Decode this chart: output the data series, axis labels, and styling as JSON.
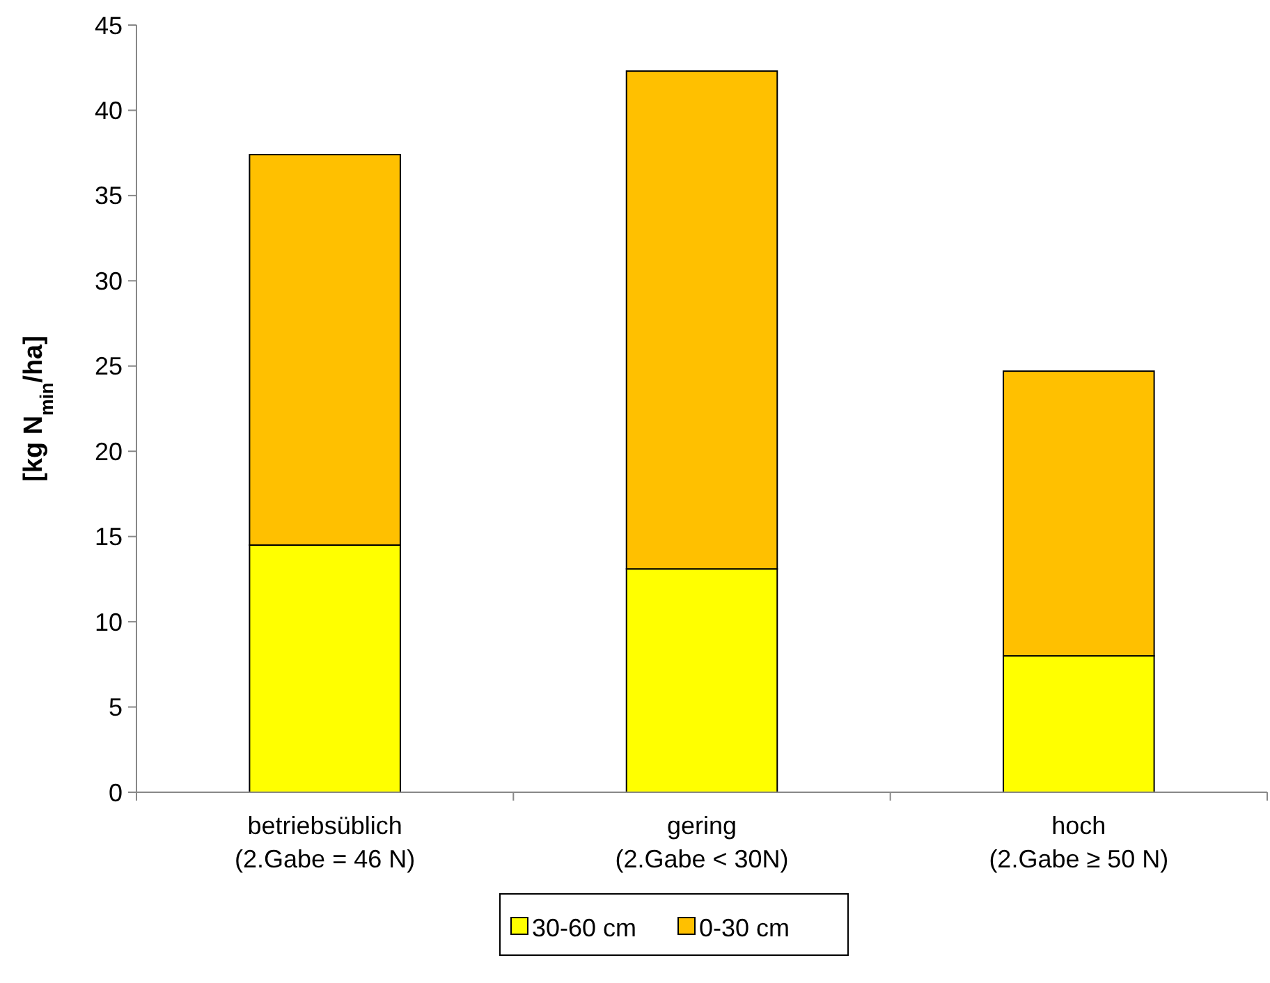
{
  "chart_data": {
    "type": "bar",
    "stacked": true,
    "ylabel": "[kg N$_{min}$/ha]",
    "categories": [
      "betriebsüblich\n(2.Gabe = 46 N)",
      "gering\n(2.Gabe < 30N)",
      "hoch\n(2.Gabe ≥ 50 N)"
    ],
    "series": [
      {
        "name": "30-60 cm",
        "color": "#ffff00",
        "values": [
          14.5,
          13.1,
          8.0
        ]
      },
      {
        "name": "0-30 cm",
        "color": "#ffc000",
        "values": [
          22.9,
          29.2,
          16.7
        ]
      }
    ],
    "ylim": [
      0,
      45
    ],
    "yticks": [
      0,
      5,
      10,
      15,
      20,
      25,
      30,
      35,
      40,
      45
    ],
    "grid": false,
    "legend": "bottom"
  }
}
